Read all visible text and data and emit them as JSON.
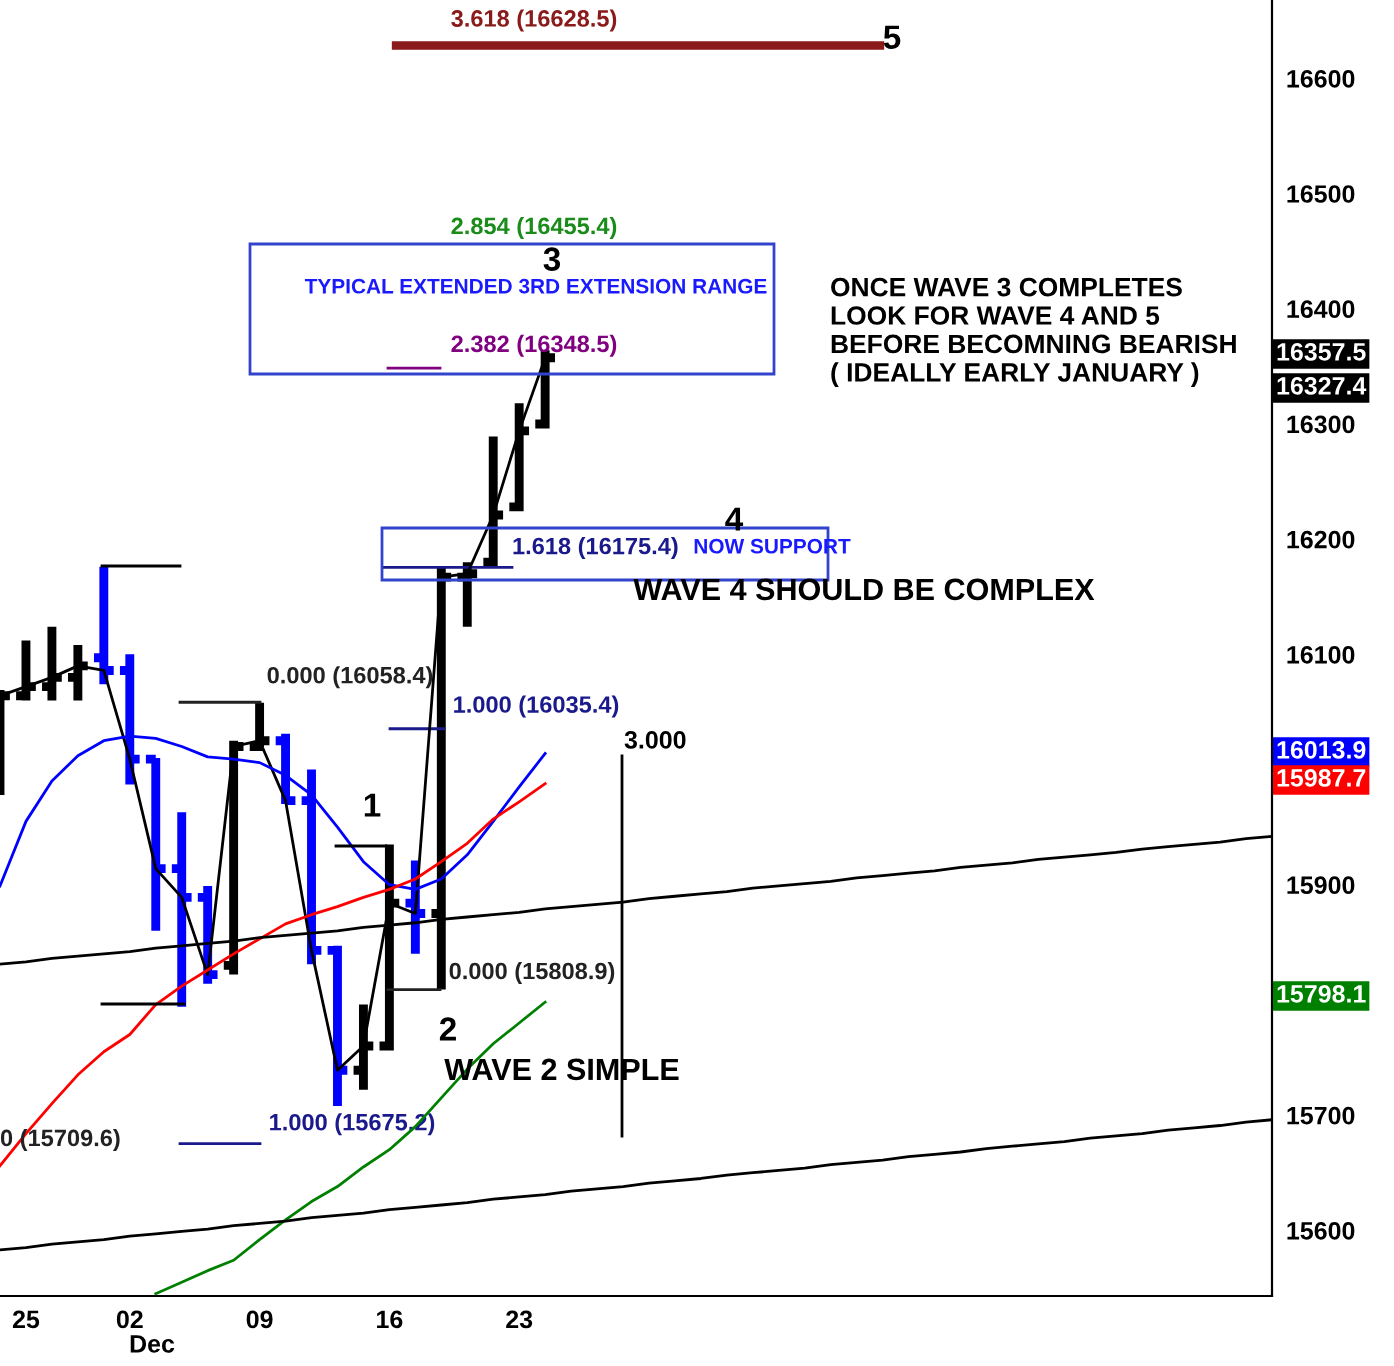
{
  "chart_data": {
    "type": "candlestick",
    "categories": [
      null,
      "25",
      null,
      null,
      null,
      "02",
      null,
      null,
      null,
      null,
      "09",
      null,
      null,
      null,
      null,
      "16",
      null,
      null,
      null,
      null,
      "23",
      null,
      null,
      null,
      null,
      null,
      null,
      null,
      null,
      null,
      null,
      null,
      null,
      null,
      null,
      null,
      null,
      null,
      null,
      null,
      null,
      null,
      null,
      null,
      null,
      null,
      null,
      null,
      null,
      null
    ],
    "ohlc": [
      [
        16010,
        16069,
        15978,
        16064
      ],
      [
        16064,
        16112,
        16060,
        16072
      ],
      [
        16072,
        16124,
        16060,
        16080
      ],
      [
        16080,
        16108,
        16060,
        16090
      ],
      [
        16097,
        16176,
        16074,
        16086
      ],
      [
        16086,
        16100,
        15987,
        16009
      ],
      [
        16009,
        16010,
        15860,
        15914
      ],
      [
        15914,
        15963,
        15794,
        15889
      ],
      [
        15889,
        15899,
        15814,
        15822
      ],
      [
        15830,
        16025,
        15822,
        16020
      ],
      [
        16020,
        16058,
        16019,
        16025
      ],
      [
        16025,
        16031,
        15970,
        15973
      ],
      [
        15973,
        16000,
        15831,
        15843
      ],
      [
        15843,
        15847,
        15708,
        15739
      ],
      [
        15739,
        15796,
        15722,
        15760
      ],
      [
        15760,
        15935,
        15758,
        15884
      ],
      [
        15884,
        15921,
        15840,
        15875
      ],
      [
        15875,
        16175,
        15809,
        16167
      ],
      [
        16167,
        16180,
        16124,
        16170
      ],
      [
        16180,
        16289,
        16178,
        16221
      ],
      [
        16228,
        16318,
        16225,
        16294
      ],
      [
        16300,
        16364,
        16297,
        16357.5
      ],
      null,
      null,
      null,
      null,
      null,
      null,
      null,
      null,
      null,
      null,
      null,
      null,
      null,
      null,
      null,
      null,
      null,
      null,
      null,
      null,
      null,
      null,
      null,
      null,
      null,
      null,
      null,
      null
    ],
    "colors": [
      "#000000",
      "#000000",
      "#000000",
      "#000000",
      "#0000ff",
      "#0000ff",
      "#0000ff",
      "#0000ff",
      "#0000ff",
      "#000000",
      "#000000",
      "#0000ff",
      "#0000ff",
      "#0000ff",
      "#000000",
      "#000000",
      "#0000ff",
      "#000000",
      "#000000",
      "#000000",
      "#000000",
      "#000000",
      null,
      null,
      null,
      null,
      null,
      null,
      null,
      null,
      null,
      null,
      null,
      null,
      null,
      null,
      null,
      null,
      null,
      null,
      null,
      null,
      null,
      null,
      null,
      null,
      null,
      null,
      null,
      null
    ],
    "series": [
      {
        "type": "line",
        "color": "#000000",
        "values": [
          16064,
          16072,
          16080,
          16090,
          16086,
          16009,
          15914,
          15889,
          15822,
          16020,
          16025,
          15973,
          15843,
          15739,
          15760,
          15884,
          15875,
          16167,
          16170,
          16221,
          16294,
          16357.5,
          null,
          null,
          null,
          null,
          null,
          null,
          null,
          null,
          null,
          null,
          null,
          null,
          null,
          null,
          null,
          null,
          null,
          null,
          null,
          null,
          null,
          null,
          null,
          null,
          null,
          null,
          null,
          null
        ]
      },
      {
        "type": "line",
        "color": "#0000ff",
        "values": [
          15899,
          15955,
          15990,
          16012,
          16025,
          16029,
          16027,
          16020,
          16011,
          16009,
          16006,
          15995,
          15978,
          15950,
          15920,
          15900,
          15896,
          15905,
          15926,
          15955,
          15985,
          16013.9,
          null,
          null,
          null,
          null,
          null,
          null,
          null,
          null,
          null,
          null,
          null,
          null,
          null,
          null,
          null,
          null,
          null,
          null,
          null,
          null,
          null,
          null,
          null,
          null,
          null,
          null,
          null,
          null
        ]
      },
      {
        "type": "line",
        "color": "#ff0000",
        "values": [
          15656,
          15684,
          15710,
          15735,
          15755,
          15770,
          15796,
          15812,
          15826,
          15840,
          15853,
          15866,
          15874,
          15881,
          15889,
          15896,
          15905,
          15920,
          15936,
          15957,
          15972,
          15987.7,
          null,
          null,
          null,
          null,
          null,
          null,
          null,
          null,
          null,
          null,
          null,
          null,
          null,
          null,
          null,
          null,
          null,
          null,
          null,
          null,
          null,
          null,
          null,
          null,
          null,
          null,
          null,
          null
        ]
      },
      {
        "type": "line",
        "color": "#008000",
        "values": [
          null,
          null,
          null,
          null,
          null,
          null,
          15545,
          15555,
          15565,
          15574,
          15592,
          15609,
          15625,
          15638,
          15655,
          15670,
          15690,
          15715,
          15740,
          15762,
          15780,
          15798.1,
          null,
          null,
          null,
          null,
          null,
          null,
          null,
          null,
          null,
          null,
          null,
          null,
          null,
          null,
          null,
          null,
          null,
          null,
          null,
          null,
          null,
          null,
          null,
          null,
          null,
          null,
          null,
          null
        ]
      },
      {
        "type": "line",
        "color": "#000000",
        "values": [
          15831,
          15833,
          15836,
          15838,
          15840,
          15842,
          15845,
          15847,
          15849,
          15851,
          15854,
          15856,
          15858,
          15860,
          15863,
          15865,
          15867,
          15870,
          15872,
          15874,
          15876,
          15879,
          15881,
          15883,
          15885,
          15888,
          15890,
          15892,
          15894,
          15897,
          15899,
          15901,
          15903,
          15906,
          15908,
          15910,
          15912,
          15915,
          15917,
          15919,
          15922,
          15924,
          15926,
          15928,
          15931,
          15933,
          15935,
          15937,
          15940,
          15942
        ]
      },
      {
        "type": "line",
        "color": "#000000",
        "values": [
          15583,
          15585,
          15588,
          15590,
          15592,
          15595,
          15597,
          15599,
          15601,
          15604,
          15606,
          15608,
          15611,
          15613,
          15615,
          15618,
          15620,
          15622,
          15624,
          15627,
          15629,
          15631,
          15634,
          15636,
          15638,
          15641,
          15643,
          15645,
          15648,
          15650,
          15652,
          15654,
          15657,
          15659,
          15661,
          15664,
          15666,
          15668,
          15671,
          15673,
          15675,
          15677,
          15680,
          15682,
          15684,
          15687,
          15689,
          15691,
          15694,
          15696
        ]
      }
    ],
    "ylim": [
      15543,
      16668
    ],
    "yticks": [
      15600,
      15700,
      15900,
      16100,
      16200,
      16300,
      16400,
      16500,
      16600
    ],
    "ref_lines": [
      {
        "axis": "y",
        "value": 16628.5,
        "label": "3.618 (16628.5)",
        "color": "#8b1a1a"
      },
      {
        "axis": "y",
        "value": 16348.5,
        "label": "2.382 (16348.5)",
        "color": "#800080"
      },
      {
        "axis": "y",
        "value": 16175.4,
        "label": "1.618 (16175.4)",
        "color": "#1a1a8c"
      },
      {
        "axis": "y",
        "value": 16058.4,
        "label": "0.000 (16058.4)",
        "color": "#222222"
      },
      {
        "axis": "y",
        "value": 16035.4,
        "label": "1.000 (16035.4)",
        "color": "#1a1a8c"
      },
      {
        "axis": "y",
        "value": 15808.9,
        "label": "0.000 (15808.9)",
        "color": "#222222"
      },
      {
        "axis": "y",
        "value": 15675.2,
        "label": "1.000 (15675.2)",
        "color": "#1a1a8c"
      }
    ],
    "annotations": [
      "3",
      "TYPICAL EXTENDED 3RD EXTENSION RANGE",
      "4",
      "NOW SUPPORT",
      "WAVE 4 SHOULD BE COMPLEX",
      "1",
      "2",
      "WAVE 2 SIMPLE",
      "5",
      "3.000",
      "ONCE WAVE 3 COMPLETES\nLOOK FOR WAVE 4 AND 5\nBEFORE BECOMNING BEARISH\n( IDEALLY EARLY JANUARY )",
      "Dec",
      "16357.5",
      "16327.4",
      "2.854 (16455.4)",
      "0 (15709.6)",
      "16013.9",
      "15987.7",
      "15798.1"
    ]
  }
}
